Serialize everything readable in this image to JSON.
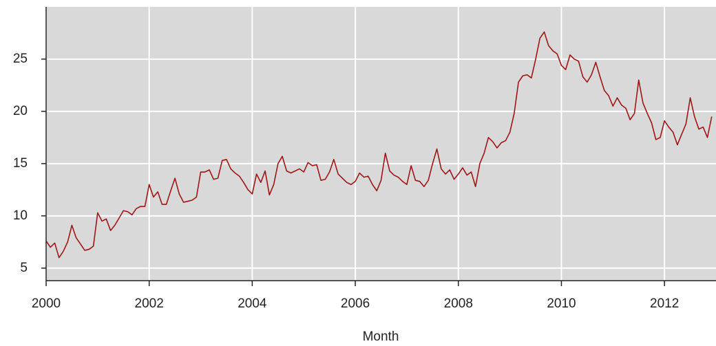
{
  "chart_data": {
    "type": "line",
    "xlabel": "Month",
    "x": [
      2000,
      2000.083,
      2000.167,
      2000.25,
      2000.333,
      2000.417,
      2000.5,
      2000.583,
      2000.667,
      2000.75,
      2000.833,
      2000.917,
      2001,
      2001.083,
      2001.167,
      2001.25,
      2001.333,
      2001.417,
      2001.5,
      2001.583,
      2001.667,
      2001.75,
      2001.833,
      2001.917,
      2002,
      2002.083,
      2002.167,
      2002.25,
      2002.333,
      2002.417,
      2002.5,
      2002.583,
      2002.667,
      2002.75,
      2002.833,
      2002.917,
      2003,
      2003.083,
      2003.167,
      2003.25,
      2003.333,
      2003.417,
      2003.5,
      2003.583,
      2003.667,
      2003.75,
      2003.833,
      2003.917,
      2004,
      2004.083,
      2004.167,
      2004.25,
      2004.333,
      2004.417,
      2004.5,
      2004.583,
      2004.667,
      2004.75,
      2004.833,
      2004.917,
      2005,
      2005.083,
      2005.167,
      2005.25,
      2005.333,
      2005.417,
      2005.5,
      2005.583,
      2005.667,
      2005.75,
      2005.833,
      2005.917,
      2006,
      2006.083,
      2006.167,
      2006.25,
      2006.333,
      2006.417,
      2006.5,
      2006.583,
      2006.667,
      2006.75,
      2006.833,
      2006.917,
      2007,
      2007.083,
      2007.167,
      2007.25,
      2007.333,
      2007.417,
      2007.5,
      2007.583,
      2007.667,
      2007.75,
      2007.833,
      2007.917,
      2008,
      2008.083,
      2008.167,
      2008.25,
      2008.333,
      2008.417,
      2008.5,
      2008.583,
      2008.667,
      2008.75,
      2008.833,
      2008.917,
      2009,
      2009.083,
      2009.167,
      2009.25,
      2009.333,
      2009.417,
      2009.5,
      2009.583,
      2009.667,
      2009.75,
      2009.833,
      2009.917,
      2010,
      2010.083,
      2010.167,
      2010.25,
      2010.333,
      2010.417,
      2010.5,
      2010.583,
      2010.667,
      2010.75,
      2010.833,
      2010.917,
      2011,
      2011.083,
      2011.167,
      2011.25,
      2011.333,
      2011.417,
      2011.5,
      2011.583,
      2011.667,
      2011.75,
      2011.833,
      2011.917,
      2012,
      2012.083,
      2012.167,
      2012.25,
      2012.333,
      2012.417,
      2012.5,
      2012.583,
      2012.667,
      2012.75,
      2012.833,
      2012.917
    ],
    "values": [
      7.6,
      7.0,
      7.4,
      6.0,
      6.6,
      7.5,
      9.1,
      7.9,
      7.3,
      6.7,
      6.8,
      7.1,
      10.3,
      9.5,
      9.7,
      8.6,
      9.1,
      9.8,
      10.5,
      10.4,
      10.1,
      10.7,
      10.9,
      10.9,
      13.0,
      11.8,
      12.3,
      11.1,
      11.1,
      12.4,
      13.6,
      12.1,
      11.3,
      11.4,
      11.5,
      11.8,
      14.2,
      14.2,
      14.4,
      13.5,
      13.6,
      15.3,
      15.4,
      14.5,
      14.1,
      13.8,
      13.2,
      12.5,
      12.1,
      14.0,
      13.2,
      14.3,
      12.0,
      13.0,
      15.0,
      15.7,
      14.3,
      14.1,
      14.3,
      14.5,
      14.2,
      15.1,
      14.8,
      14.9,
      13.4,
      13.5,
      14.2,
      15.4,
      14.0,
      13.6,
      13.2,
      13.0,
      13.3,
      14.1,
      13.7,
      13.8,
      13.0,
      12.4,
      13.4,
      16.0,
      14.3,
      13.9,
      13.7,
      13.3,
      13.0,
      14.8,
      13.4,
      13.3,
      12.8,
      13.4,
      15.0,
      16.4,
      14.5,
      14.0,
      14.4,
      13.5,
      14.0,
      14.6,
      13.9,
      14.2,
      12.8,
      15.0,
      16.0,
      17.5,
      17.1,
      16.5,
      17.0,
      17.2,
      18.0,
      19.8,
      22.8,
      23.4,
      23.5,
      23.2,
      25.0,
      27.0,
      27.6,
      26.3,
      25.8,
      25.5,
      24.4,
      24.0,
      25.4,
      25.0,
      24.8,
      23.3,
      22.8,
      23.5,
      24.7,
      23.3,
      22.0,
      21.5,
      20.5,
      21.3,
      20.6,
      20.3,
      19.2,
      19.8,
      23.0,
      20.8,
      19.8,
      18.9,
      17.3,
      17.5,
      19.1,
      18.5,
      18.0,
      16.8,
      17.8,
      18.8,
      21.3,
      19.5,
      18.3,
      18.5,
      17.5,
      19.5
    ],
    "color": "#a01414",
    "xlim": [
      2000,
      2013
    ],
    "xticks": [
      2000,
      2002,
      2004,
      2006,
      2008,
      2010,
      2012
    ],
    "ylim": [
      3.8,
      30
    ],
    "yticks": [
      5,
      10,
      15,
      20,
      25
    ],
    "grid": true
  }
}
